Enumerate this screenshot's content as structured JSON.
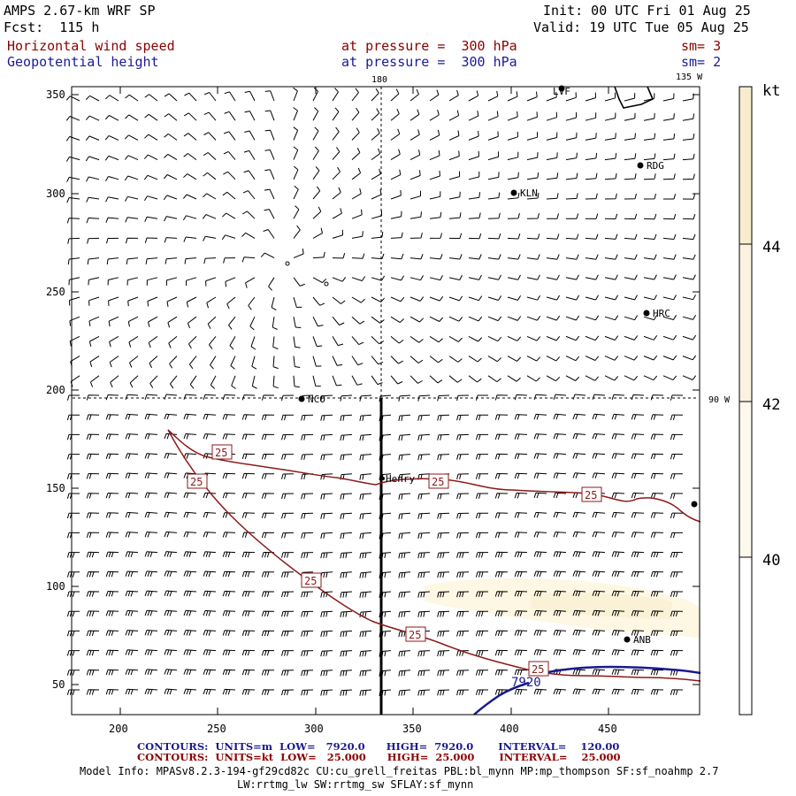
{
  "header": {
    "model_title": "AMPS 2.67-km WRF SP",
    "forecast": "Fcst:  115 h",
    "init": "Init: 00 UTC Fri 01 Aug 25",
    "valid": "Valid: 19 UTC Tue 05 Aug 25",
    "field1": "Horizontal wind speed",
    "field1_level": "at pressure =  300 hPa",
    "field1_smooth": "sm= 3",
    "field2": "Geopotential height",
    "field2_level": "at pressure =  300 hPa",
    "field2_smooth": "sm= 2"
  },
  "map": {
    "x_ticks": [
      "200",
      "250",
      "300",
      "350",
      "400",
      "450"
    ],
    "y_ticks": [
      "350",
      "300",
      "250",
      "200",
      "150",
      "100",
      "50"
    ],
    "meridian_labels": [
      "180",
      "135 W",
      "90 W"
    ],
    "stations": [
      "LVF",
      "RDG",
      "KLN",
      "HRC",
      "NCO",
      "Henry",
      "ANB"
    ],
    "contour_labels": [
      "25",
      "25",
      "25",
      "25",
      "25",
      "25",
      "25"
    ],
    "height_label": "7920"
  },
  "colorbar": {
    "unit": "kt",
    "levels": [
      "44",
      "42",
      "40"
    ],
    "colors": [
      "#f8ecce",
      "#fbf3df",
      "#fdf9ec",
      "#ffffff"
    ]
  },
  "footer": {
    "contour1": "CONTOURS:  UNITS=m  LOW=   7920.0      HIGH=  7920.0       INTERVAL=    120.00",
    "contour2": "CONTOURS:  UNITS=kt  LOW=   25.000      HIGH=  25.000       INTERVAL=    25.000",
    "model_info": "Model Info: MPASv8.2.3-194-gf29cd82c CU:cu_grell_freitas PBL:bl_mynn MP:mp_thompson SF:sf_noahmp 2.7",
    "model_info2": "LW:rrtmg_lw SW:rrtmg_sw SFLAY:sf_mynn"
  }
}
